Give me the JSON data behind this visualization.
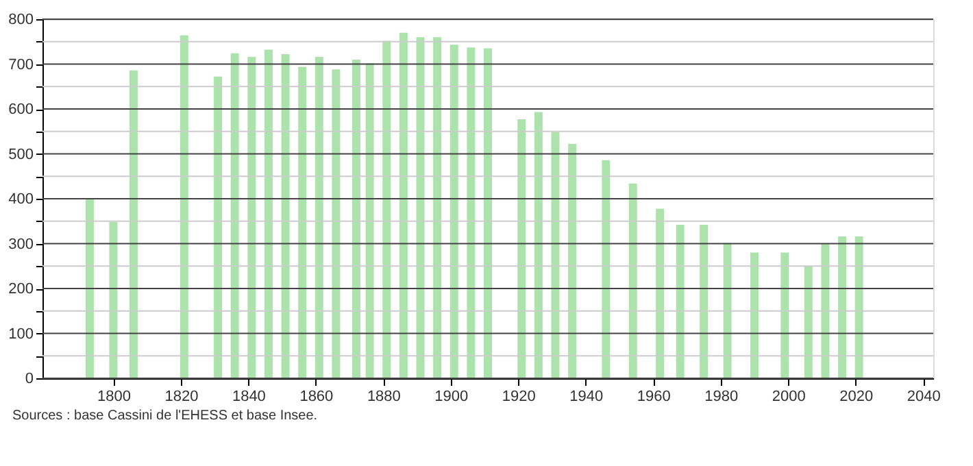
{
  "chart_data": {
    "type": "bar",
    "x": [
      1793,
      1800,
      1806,
      1821,
      1831,
      1836,
      1841,
      1846,
      1851,
      1856,
      1861,
      1866,
      1872,
      1876,
      1881,
      1886,
      1891,
      1896,
      1901,
      1906,
      1911,
      1921,
      1926,
      1931,
      1936,
      1946,
      1954,
      1962,
      1968,
      1975,
      1982,
      1990,
      1999,
      2006,
      2011,
      2016,
      2021
    ],
    "series": [
      {
        "color": "#a8e2a8",
        "values": [
          401,
          348,
          686,
          764,
          672,
          724,
          716,
          732,
          722,
          694,
          716,
          688,
          710,
          702,
          752,
          770,
          760,
          760,
          743,
          737,
          735,
          577,
          593,
          549,
          522,
          486,
          434,
          378,
          342,
          342,
          301,
          280,
          280,
          250,
          300,
          316,
          316
        ]
      }
    ],
    "xlim": [
      1779,
      2043
    ],
    "xticks": [
      1800,
      1820,
      1840,
      1860,
      1880,
      1900,
      1920,
      1940,
      1960,
      1980,
      2000,
      2020,
      2040
    ],
    "ylim": [
      0,
      800
    ],
    "yticks": [
      0,
      {
        "value": 50,
        "label": null
      },
      100,
      {
        "value": 150,
        "label": null
      },
      200,
      {
        "value": 250,
        "label": null
      },
      300,
      {
        "value": 350,
        "label": null
      },
      400,
      {
        "value": 450,
        "label": null
      },
      500,
      {
        "value": 550,
        "label": null
      },
      600,
      {
        "value": 650,
        "label": null
      },
      700,
      {
        "value": 750,
        "label": null
      },
      800
    ],
    "grid": "y",
    "annotations": [
      "Sources : base Cassini de l'EHESS et base Insee."
    ]
  }
}
